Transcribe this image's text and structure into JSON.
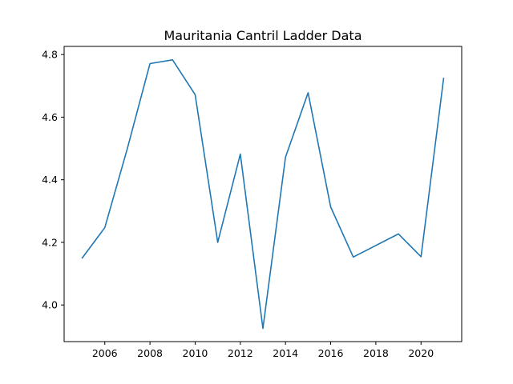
{
  "chart_data": {
    "type": "line",
    "title": "Mauritania Cantril Ladder Data",
    "xlabel": "",
    "ylabel": "",
    "xlim": [
      2004.2,
      2021.8
    ],
    "ylim": [
      3.883,
      4.826
    ],
    "grid": false,
    "legend": "none",
    "xticks": [
      2006,
      2008,
      2010,
      2012,
      2014,
      2016,
      2018,
      2020
    ],
    "yticks": [
      4.0,
      4.2,
      4.4,
      4.6,
      4.8
    ],
    "series": [
      {
        "color": "#1f77b4",
        "x": [
          2005,
          2006,
          2007,
          2008,
          2009,
          2010,
          2011,
          2012,
          2013,
          2014,
          2015,
          2016,
          2017,
          2019,
          2020,
          2021
        ],
        "y": [
          4.15,
          4.247,
          4.5,
          4.771,
          4.783,
          4.672,
          4.2,
          4.482,
          3.925,
          4.472,
          4.678,
          4.313,
          4.153,
          4.227,
          4.154,
          4.724
        ]
      }
    ]
  }
}
